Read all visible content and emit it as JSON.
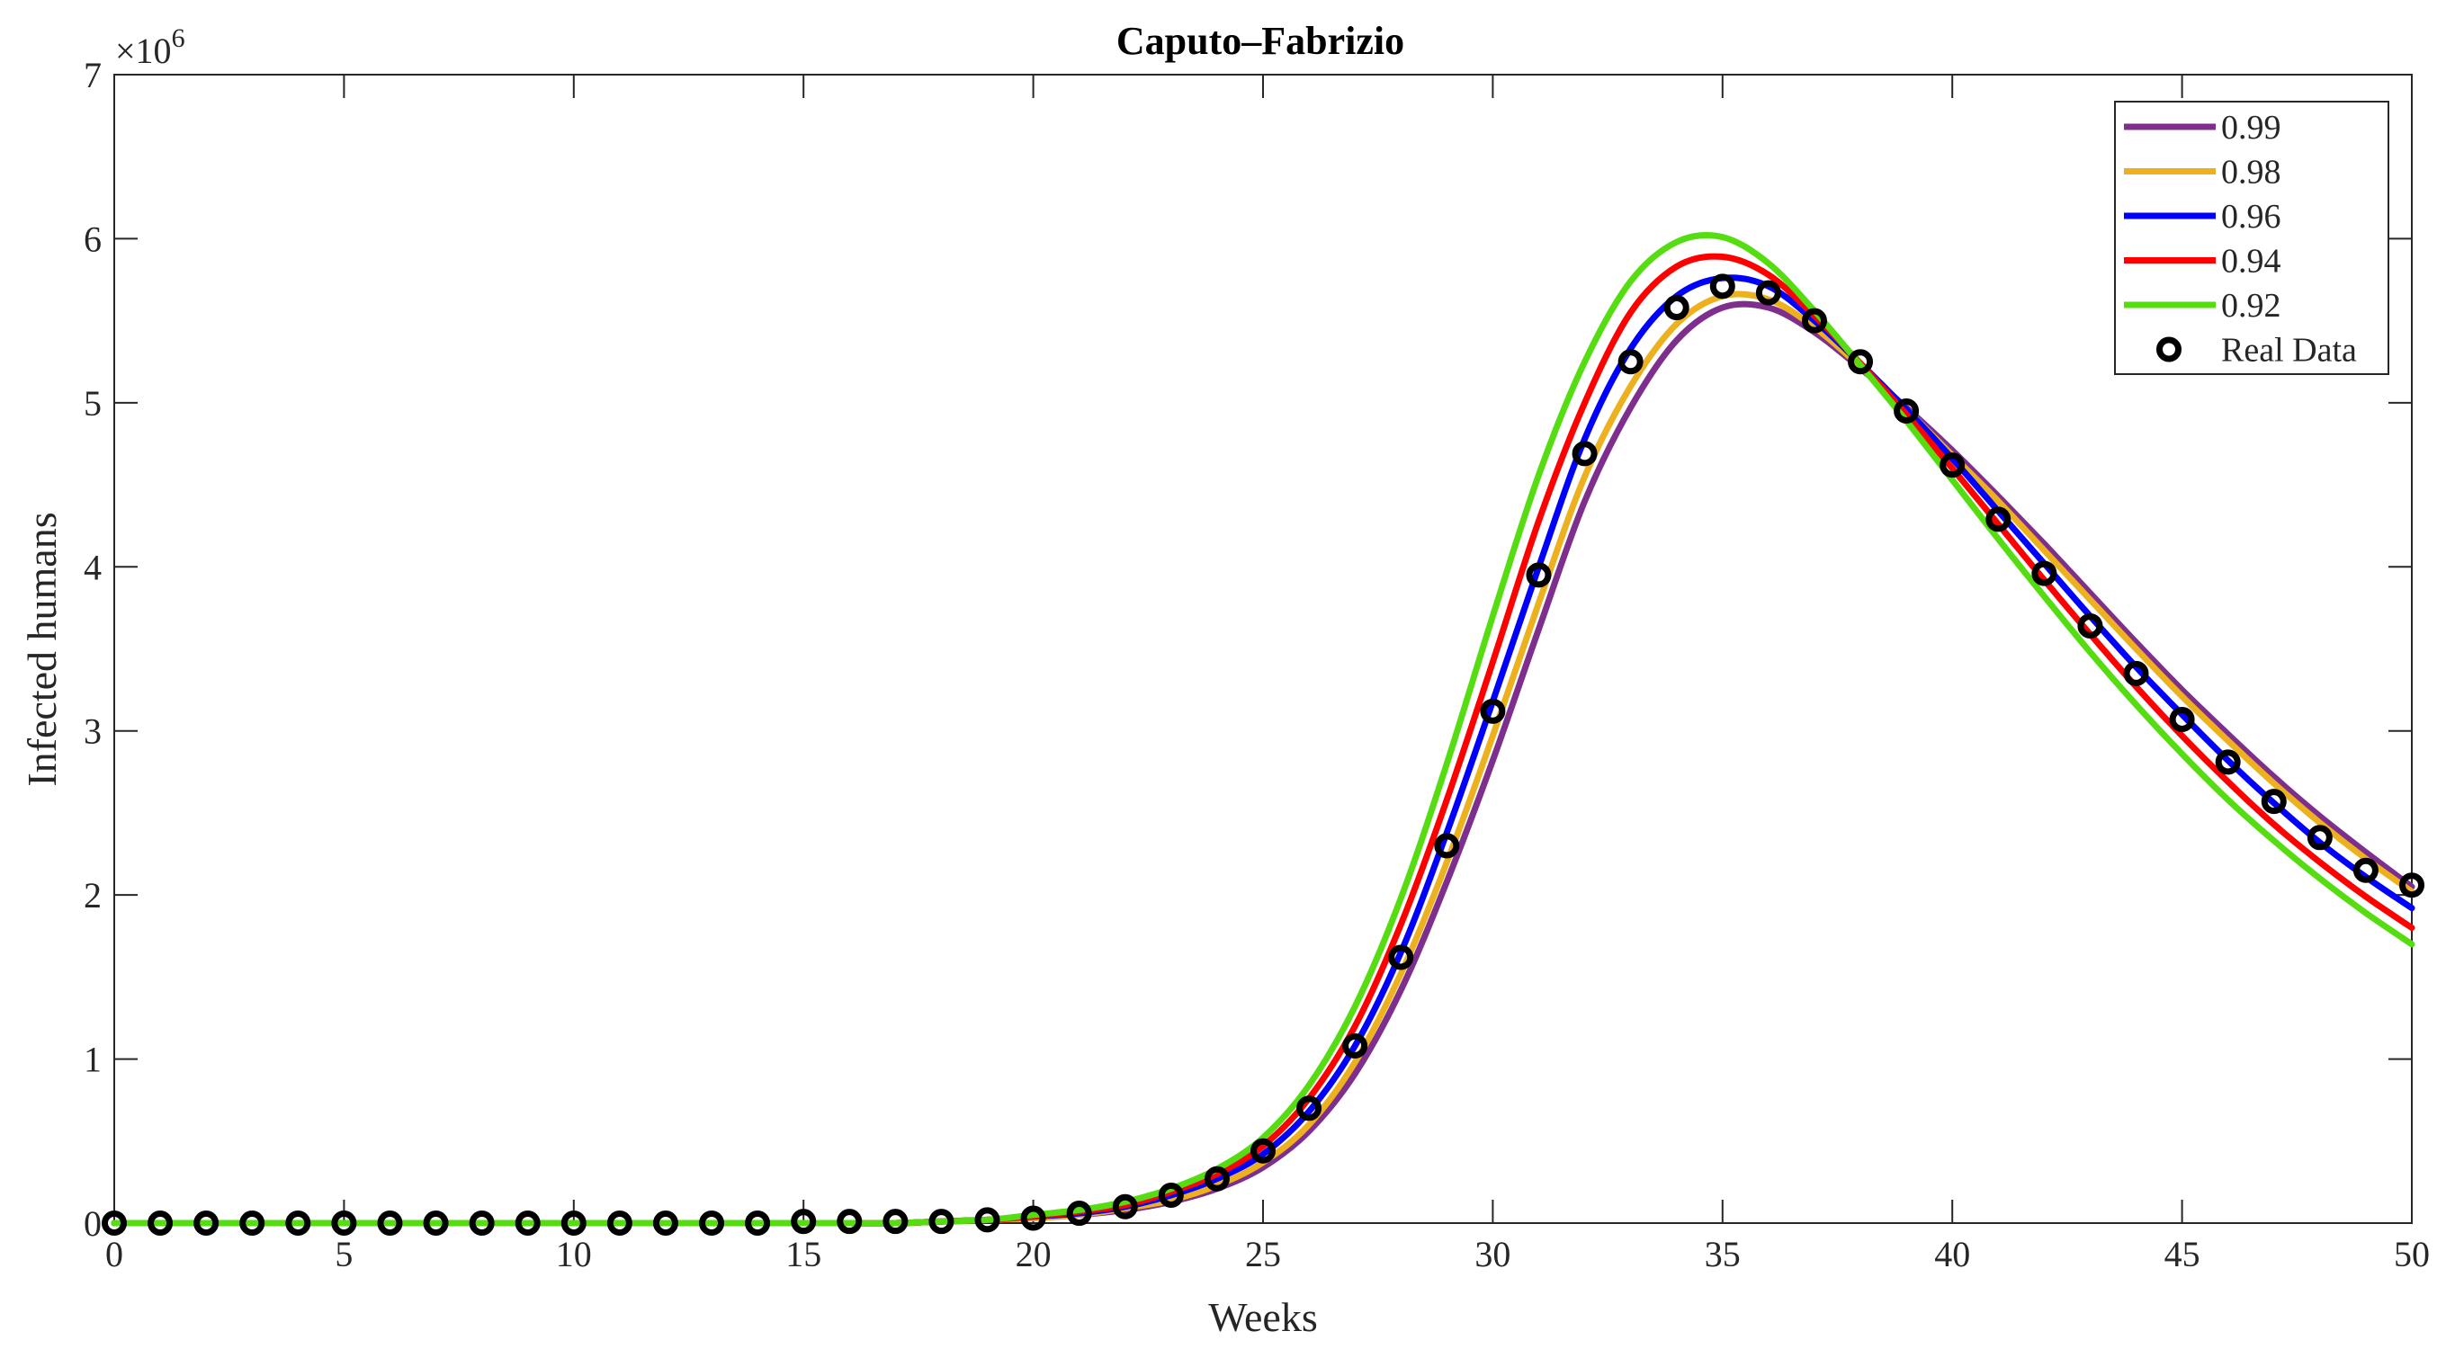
{
  "chart_data": {
    "type": "line",
    "title": "Caputo–Fabrizio",
    "xlabel": "Weeks",
    "ylabel": "Infected humans",
    "exponent_label": "×10",
    "exponent_power": "6",
    "scale": 1000000,
    "xlim": [
      0,
      50
    ],
    "ylim": [
      0,
      7
    ],
    "xticks": [
      "0",
      "5",
      "10",
      "15",
      "20",
      "25",
      "30",
      "35",
      "40",
      "45",
      "50"
    ],
    "yticks": [
      "0",
      "1",
      "2",
      "3",
      "4",
      "5",
      "6",
      "7"
    ],
    "grid": false,
    "legend_position": "top-right",
    "x": [
      0,
      1,
      2,
      3,
      4,
      5,
      6,
      7,
      8,
      9,
      10,
      11,
      12,
      13,
      14,
      15,
      16,
      17,
      18,
      19,
      20,
      21,
      22,
      23,
      24,
      25,
      26,
      27,
      28,
      29,
      30,
      31,
      32,
      33,
      34,
      35,
      36,
      37,
      38,
      39,
      40,
      41,
      42,
      43,
      44,
      45,
      46,
      47,
      48,
      49,
      50
    ],
    "series": [
      {
        "name": "0.99",
        "color": "#7e2f8e",
        "values": [
          0,
          0,
          0,
          0,
          0,
          0,
          0,
          0,
          0,
          0,
          0,
          0,
          0,
          0,
          0,
          0,
          0,
          0,
          0.01,
          0.02,
          0.03,
          0.05,
          0.08,
          0.13,
          0.21,
          0.34,
          0.56,
          0.91,
          1.42,
          2.08,
          2.82,
          3.62,
          4.4,
          4.97,
          5.38,
          5.58,
          5.58,
          5.43,
          5.21,
          4.97,
          4.71,
          4.43,
          4.14,
          3.84,
          3.54,
          3.25,
          2.98,
          2.72,
          2.48,
          2.26,
          2.05
        ]
      },
      {
        "name": "0.98",
        "color": "#edb120",
        "values": [
          0,
          0,
          0,
          0,
          0,
          0,
          0,
          0,
          0,
          0,
          0,
          0,
          0,
          0,
          0,
          0,
          0,
          0,
          0.01,
          0.02,
          0.03,
          0.05,
          0.09,
          0.14,
          0.23,
          0.37,
          0.6,
          0.98,
          1.52,
          2.2,
          2.97,
          3.78,
          4.55,
          5.1,
          5.48,
          5.65,
          5.63,
          5.46,
          5.22,
          4.96,
          4.68,
          4.4,
          4.1,
          3.8,
          3.5,
          3.21,
          2.94,
          2.68,
          2.44,
          2.22,
          2.02
        ]
      },
      {
        "name": "0.96",
        "color": "#0000ff",
        "values": [
          0,
          0,
          0,
          0,
          0,
          0,
          0,
          0,
          0,
          0,
          0,
          0,
          0,
          0,
          0,
          0,
          0,
          0,
          0.01,
          0.02,
          0.04,
          0.06,
          0.1,
          0.17,
          0.27,
          0.42,
          0.68,
          1.08,
          1.65,
          2.38,
          3.18,
          4.0,
          4.78,
          5.33,
          5.65,
          5.76,
          5.71,
          5.5,
          5.24,
          4.96,
          4.66,
          4.34,
          4.02,
          3.7,
          3.39,
          3.1,
          2.82,
          2.56,
          2.32,
          2.11,
          1.92
        ]
      },
      {
        "name": "0.94",
        "color": "#ff0000",
        "values": [
          0,
          0,
          0,
          0,
          0,
          0,
          0,
          0,
          0,
          0,
          0,
          0,
          0,
          0,
          0,
          0,
          0,
          0,
          0.01,
          0.02,
          0.04,
          0.07,
          0.11,
          0.19,
          0.3,
          0.47,
          0.76,
          1.2,
          1.82,
          2.58,
          3.42,
          4.28,
          5.0,
          5.55,
          5.83,
          5.89,
          5.78,
          5.53,
          5.24,
          4.93,
          4.6,
          4.26,
          3.92,
          3.59,
          3.27,
          2.97,
          2.69,
          2.43,
          2.2,
          1.99,
          1.8
        ]
      },
      {
        "name": "0.92",
        "color": "#55dd11",
        "values": [
          0,
          0,
          0,
          0,
          0,
          0,
          0,
          0,
          0,
          0,
          0,
          0,
          0,
          0,
          0,
          0,
          0,
          0,
          0.01,
          0.02,
          0.05,
          0.08,
          0.13,
          0.21,
          0.33,
          0.52,
          0.84,
          1.32,
          1.98,
          2.8,
          3.7,
          4.56,
          5.25,
          5.74,
          5.98,
          6.01,
          5.85,
          5.56,
          5.23,
          4.89,
          4.53,
          4.17,
          3.82,
          3.48,
          3.16,
          2.86,
          2.58,
          2.33,
          2.1,
          1.89,
          1.7
        ]
      }
    ],
    "real_data": {
      "name": "Real Data",
      "values": [
        0,
        0,
        0,
        0,
        0,
        0,
        0,
        0,
        0,
        0,
        0,
        0,
        0,
        0,
        0,
        0.01,
        0.01,
        0.01,
        0.01,
        0.02,
        0.03,
        0.06,
        0.1,
        0.17,
        0.27,
        0.44,
        0.7,
        1.08,
        1.62,
        2.3,
        3.12,
        3.95,
        4.69,
        5.25,
        5.58,
        5.71,
        5.67,
        5.5,
        5.25,
        4.95,
        4.62,
        4.29,
        3.96,
        3.64,
        3.35,
        3.07,
        2.81,
        2.57,
        2.35,
        2.15,
        2.06
      ]
    }
  }
}
